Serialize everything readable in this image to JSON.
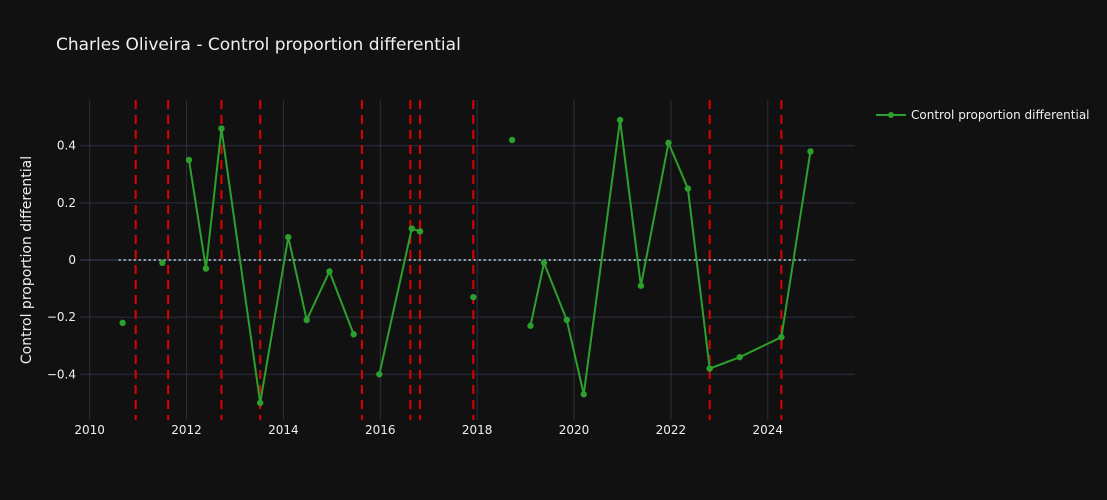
{
  "chart_data": {
    "type": "line",
    "title": "Charles Oliveira - Control proportion differential",
    "ylabel": "Control proportion differential",
    "xlabel": "",
    "xlim": [
      2009.8,
      2025.8
    ],
    "ylim": [
      -0.56,
      0.56
    ],
    "x_ticks": [
      2010,
      2012,
      2014,
      2016,
      2018,
      2020,
      2022,
      2024
    ],
    "x_tick_labels": [
      "2010",
      "2012",
      "2014",
      "2016",
      "2018",
      "2020",
      "2022",
      "2024"
    ],
    "y_ticks": [
      -0.4,
      -0.2,
      0,
      0.2,
      0.4
    ],
    "y_tick_labels": [
      "−0.4",
      "−0.2",
      "0",
      "0.2",
      "0.4"
    ],
    "grid": true,
    "legend_position": "top-right",
    "zero_line": {
      "y": 0,
      "x_range": [
        2010.6,
        2024.85
      ],
      "color": "#9aa7b8",
      "style": "dotted"
    },
    "loss_markers": {
      "color": "#e00000",
      "style": "dashed",
      "x": [
        2010.95,
        2011.62,
        2012.72,
        2013.52,
        2015.62,
        2016.62,
        2016.82,
        2017.92,
        2022.8,
        2024.28
      ]
    },
    "series": [
      {
        "name": "Control proportion differential",
        "color": "#2ca02c",
        "points": [
          {
            "x": 2010.68,
            "y": -0.22
          },
          {
            "x": 2011.5,
            "y": -0.01
          },
          {
            "x": 2012.05,
            "y": 0.35
          },
          {
            "x": 2012.4,
            "y": -0.03
          },
          {
            "x": 2012.72,
            "y": 0.46
          },
          {
            "x": 2013.52,
            "y": -0.5
          },
          {
            "x": 2014.1,
            "y": 0.08
          },
          {
            "x": 2014.48,
            "y": -0.21
          },
          {
            "x": 2014.95,
            "y": -0.04
          },
          {
            "x": 2015.45,
            "y": -0.26
          },
          {
            "x": 2015.98,
            "y": -0.4
          },
          {
            "x": 2016.65,
            "y": 0.11
          },
          {
            "x": 2016.82,
            "y": 0.1
          },
          {
            "x": 2017.92,
            "y": -0.13
          },
          {
            "x": 2018.72,
            "y": 0.42
          },
          {
            "x": 2019.1,
            "y": -0.23
          },
          {
            "x": 2019.38,
            "y": -0.01
          },
          {
            "x": 2019.85,
            "y": -0.21
          },
          {
            "x": 2020.2,
            "y": -0.47
          },
          {
            "x": 2020.95,
            "y": 0.49
          },
          {
            "x": 2021.38,
            "y": -0.09
          },
          {
            "x": 2021.95,
            "y": 0.41
          },
          {
            "x": 2022.35,
            "y": 0.25
          },
          {
            "x": 2022.8,
            "y": -0.38
          },
          {
            "x": 2023.42,
            "y": -0.34
          },
          {
            "x": 2024.28,
            "y": -0.27
          },
          {
            "x": 2024.88,
            "y": 0.38
          }
        ],
        "segments": [
          [
            0
          ],
          [
            1
          ],
          [
            2,
            3,
            4,
            5,
            6,
            7,
            8,
            9
          ],
          [
            10,
            11,
            12
          ],
          [
            13
          ],
          [
            14
          ],
          [
            15,
            16,
            17,
            18,
            19,
            20,
            21,
            22,
            23,
            24,
            25,
            26
          ]
        ]
      }
    ]
  }
}
